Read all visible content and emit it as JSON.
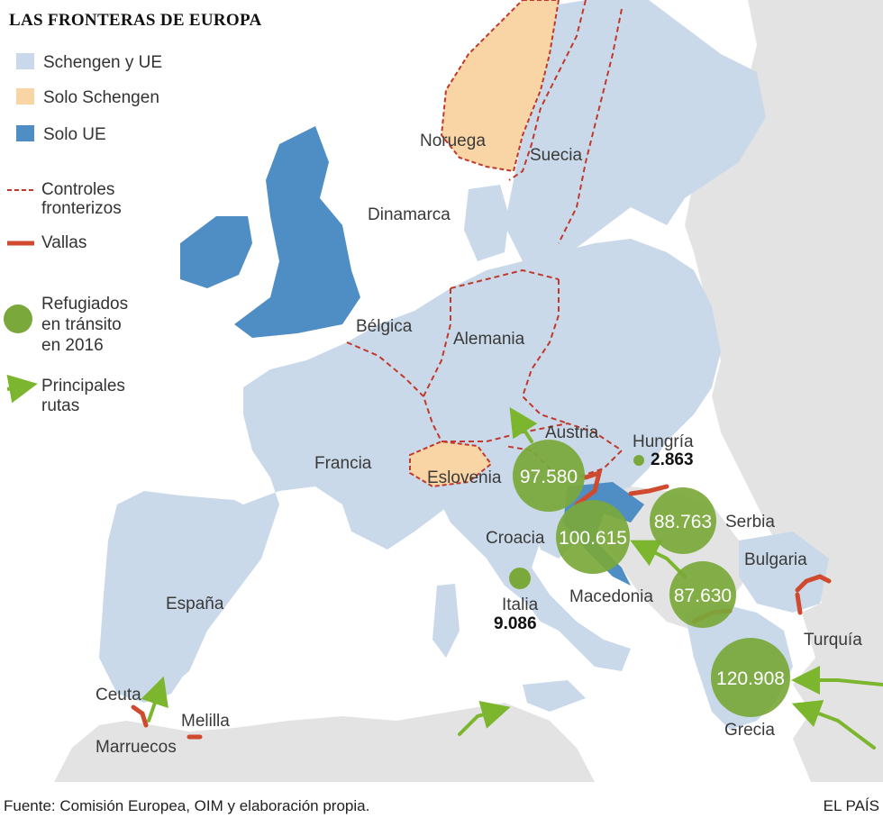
{
  "title": "LAS FRONTERAS DE EUROPA",
  "legend": {
    "schengen_ue": "Schengen y UE",
    "solo_schengen": "Solo Schengen",
    "solo_ue": "Solo UE",
    "controles_1": "Controles",
    "controles_2": "fronterizos",
    "vallas": "Vallas",
    "refugiados_1": "Refugiados",
    "refugiados_2": "en tránsito",
    "refugiados_3": "en 2016",
    "rutas_1": "Principales",
    "rutas_2": "rutas"
  },
  "countries": {
    "noruega": "Noruega",
    "suecia": "Suecia",
    "dinamarca": "Dinamarca",
    "belgica": "Bélgica",
    "alemania": "Alemania",
    "francia": "Francia",
    "austria": "Austria",
    "hungria": "Hungría",
    "eslovenia": "Eslovenia",
    "croacia": "Croacia",
    "serbia": "Serbia",
    "bulgaria": "Bulgaria",
    "macedonia": "Macedonia",
    "italia": "Italia",
    "espana": "España",
    "turquia": "Turquía",
    "grecia": "Grecia",
    "ceuta": "Ceuta",
    "melilla": "Melilla",
    "marruecos": "Marruecos"
  },
  "refugees": {
    "austria": "97.580",
    "hungria": "2.863",
    "croacia": "100.615",
    "serbia": "88.763",
    "macedonia": "87.630",
    "grecia": "120.908",
    "italia": "9.086"
  },
  "colors": {
    "schengen_ue": "#c9d9ea",
    "solo_schengen": "#f9d5a6",
    "solo_ue": "#4f8ec4",
    "controles": "#c0392b",
    "vallas": "#cf4a2e",
    "refugiados": "#7aa83a",
    "rutas": "#7cb62f",
    "non_eu": "#e3e3e3"
  },
  "footer": {
    "source": "Fuente: Comisión Europea, OIM y elaboración propia.",
    "brand": "EL PAÍS"
  }
}
